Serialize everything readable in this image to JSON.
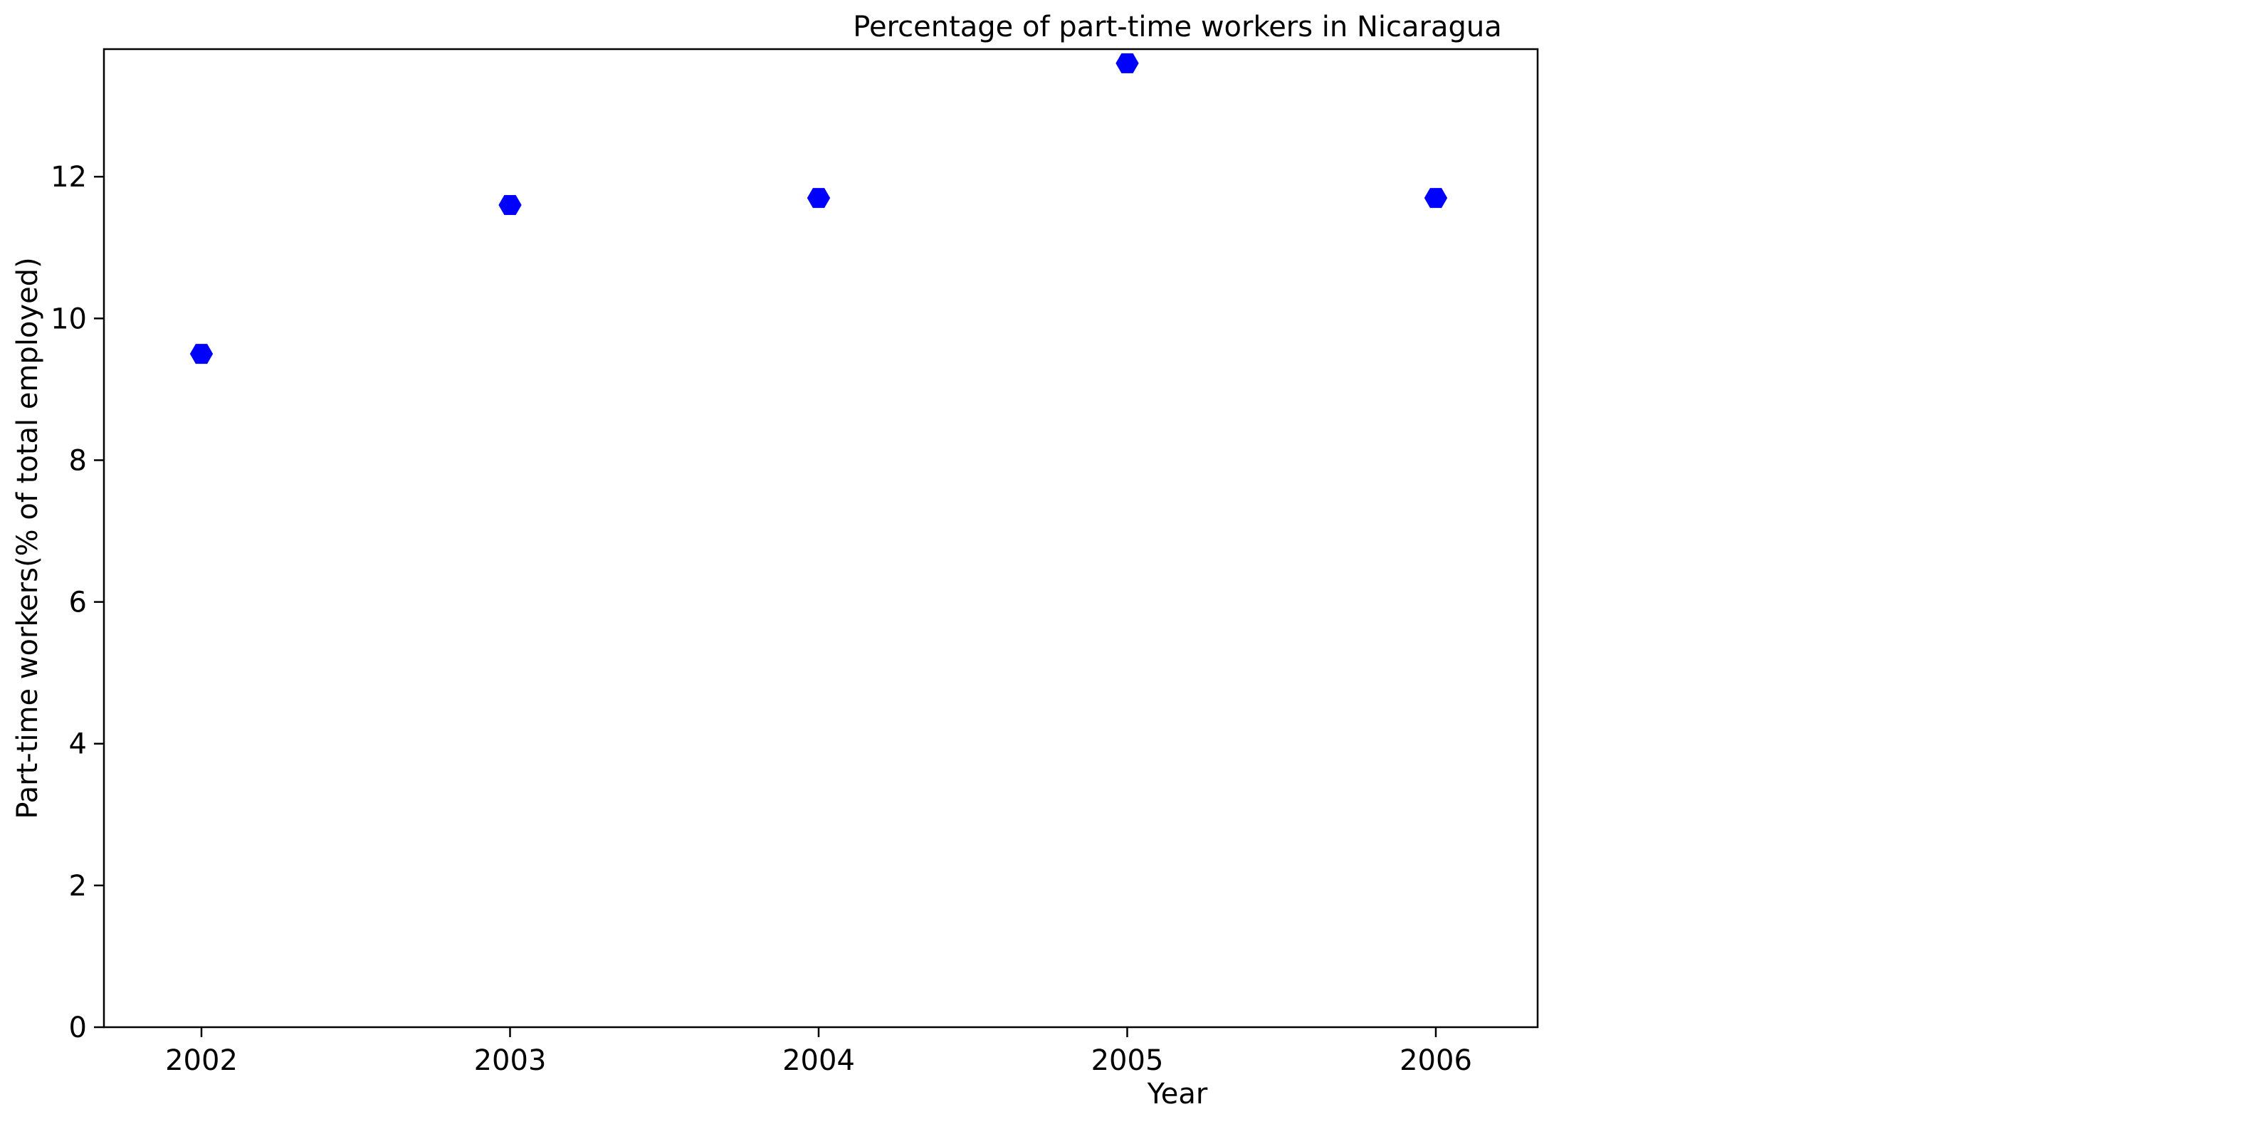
{
  "chart_data": {
    "type": "scatter",
    "title": "Percentage of part-time workers in Nicaragua",
    "xlabel": "Year",
    "ylabel": "Part-time workers(% of total employed)",
    "x": [
      "2002",
      "2003",
      "2004",
      "2005",
      "2006"
    ],
    "series": [
      {
        "values": [
          9.5,
          11.6,
          11.7,
          13.6,
          11.7
        ],
        "color": "#0000ff",
        "marker": "hexagon"
      }
    ],
    "yticks": [
      "0",
      "2",
      "4",
      "6",
      "8",
      "10",
      "12"
    ],
    "ylim": [
      0,
      13.8
    ],
    "grid": false,
    "legend": "none"
  }
}
